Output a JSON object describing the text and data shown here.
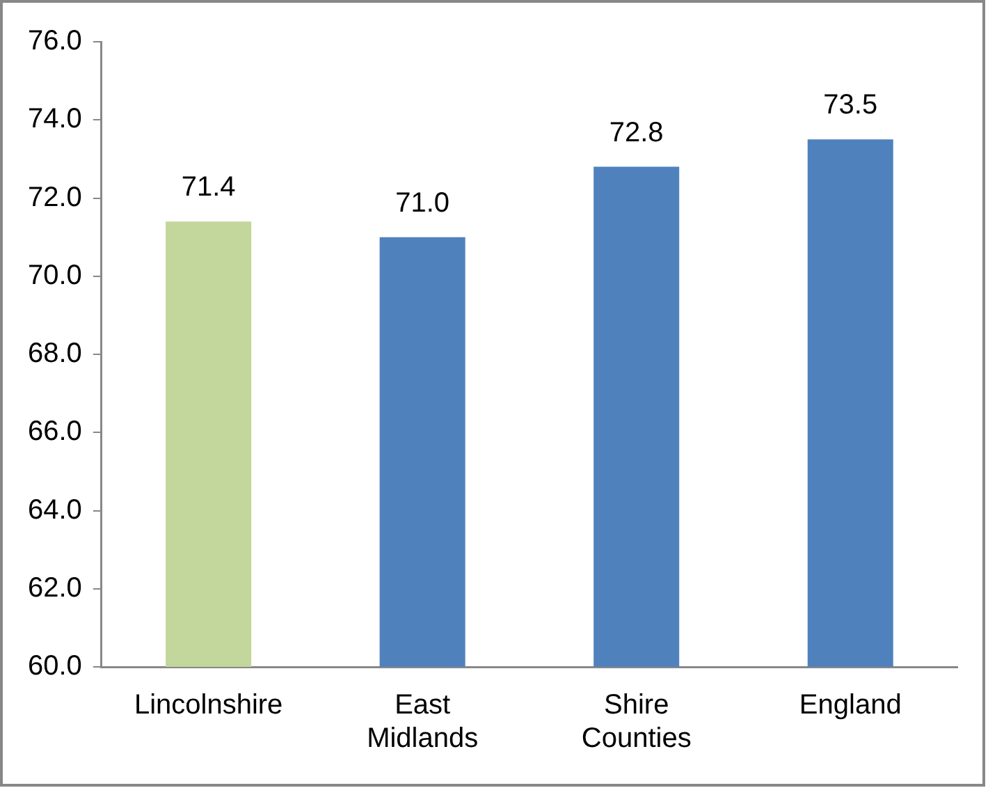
{
  "chart_data": {
    "type": "bar",
    "categories": [
      "Lincolnshire",
      "East Midlands",
      "Shire Counties",
      "England"
    ],
    "values": [
      71.4,
      71.0,
      72.8,
      73.5
    ],
    "colors": [
      "#c3d69b",
      "#4f81bd",
      "#4f81bd",
      "#4f81bd"
    ],
    "value_labels": [
      "71.4",
      "71.0",
      "72.8",
      "73.5"
    ],
    "ylim": [
      60,
      76
    ],
    "yticks": [
      {
        "value": 60,
        "label": "60.0"
      },
      {
        "value": 62,
        "label": "62.0"
      },
      {
        "value": 64,
        "label": "64.0"
      },
      {
        "value": 66,
        "label": "66.0"
      },
      {
        "value": 68,
        "label": "68.0"
      },
      {
        "value": 70,
        "label": "70.0"
      },
      {
        "value": 72,
        "label": "72.0"
      },
      {
        "value": 74,
        "label": "74.0"
      },
      {
        "value": 76,
        "label": "76.0"
      }
    ],
    "grid": false,
    "legend": false
  }
}
